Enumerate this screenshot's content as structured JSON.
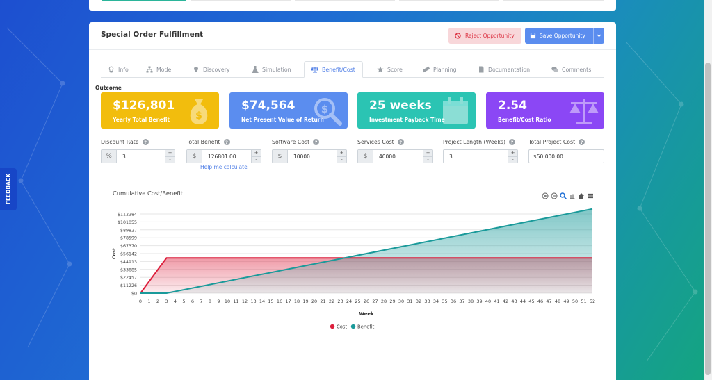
{
  "page": {
    "title": "Special Order Fulfillment",
    "reject_label": "Reject Opportunity",
    "save_label": "Save Opportunity",
    "feedback_label": "FEEDBACK"
  },
  "tabs": [
    {
      "label": "Info",
      "icon": "lightbulb-icon"
    },
    {
      "label": "Model",
      "icon": "sitemap-icon"
    },
    {
      "label": "Discovery",
      "icon": "bulb-icon"
    },
    {
      "label": "Simulation",
      "icon": "flask-icon"
    },
    {
      "label": "Benefit/Cost",
      "icon": "balance-scale-icon",
      "active": true
    },
    {
      "label": "Score",
      "icon": "star-icon"
    },
    {
      "label": "Planning",
      "icon": "ruler-icon"
    },
    {
      "label": "Documentation",
      "icon": "file-icon"
    },
    {
      "label": "Comments",
      "icon": "comments-icon"
    }
  ],
  "outcome": {
    "label": "Outcome",
    "kpis": [
      {
        "value": "$126,801",
        "label": "Yearly Total Benefit",
        "color": "#f2bd0d",
        "icon": "money-bag-icon"
      },
      {
        "value": "$74,564",
        "label": "Net Present Value of Return",
        "color": "#5b8def",
        "icon": "search-dollar-icon"
      },
      {
        "value": "25 weeks",
        "label": "Investment Payback Time",
        "color": "#2bc4b3",
        "icon": "calendar-icon"
      },
      {
        "value": "2.54",
        "label": "Benefit/Cost Ratio",
        "color": "#8b47f5",
        "icon": "balance-scale-icon"
      }
    ]
  },
  "fields": [
    {
      "label": "Discount Rate",
      "prefix": "%",
      "value": "3",
      "spinner": true
    },
    {
      "label": "Total Benefit",
      "prefix": "$",
      "value": "126801.00",
      "spinner": true
    },
    {
      "label": "Software Cost",
      "prefix": "$",
      "value": "10000",
      "spinner": true
    },
    {
      "label": "Services Cost",
      "prefix": "$",
      "value": "40000",
      "spinner": true
    },
    {
      "label": "Project Length (Weeks)",
      "prefix": "",
      "value": "3",
      "spinner": true
    },
    {
      "label": "Total Project Cost",
      "prefix": "",
      "value": "$50,000.00",
      "spinner": false
    }
  ],
  "help_link": "Help me calculate",
  "chart_title": "Cumulative Cost/Benefit",
  "colors": {
    "cost": "#dc1f3c",
    "benefit": "#1a9a9a"
  },
  "chart_data": {
    "type": "area",
    "title": "Cumulative Cost/Benefit",
    "xlabel": "Week",
    "ylabel": "Cost",
    "x": [
      0,
      1,
      2,
      3,
      4,
      5,
      6,
      7,
      8,
      9,
      10,
      11,
      12,
      13,
      14,
      15,
      16,
      17,
      18,
      19,
      20,
      21,
      22,
      23,
      24,
      25,
      26,
      27,
      28,
      29,
      30,
      31,
      32,
      33,
      34,
      35,
      36,
      37,
      38,
      39,
      40,
      41,
      42,
      43,
      44,
      45,
      46,
      47,
      48,
      49,
      50,
      51,
      52
    ],
    "y_ticks": [
      "$0",
      "$11226",
      "$22457",
      "$33685",
      "$44913",
      "$56142",
      "$67370",
      "$78599",
      "$89827",
      "$101055",
      "$112284"
    ],
    "ylim": [
      0,
      112284
    ],
    "series": [
      {
        "name": "Cost",
        "segments": [
          [
            0,
            0
          ],
          [
            3,
            50000
          ],
          [
            52,
            50000
          ]
        ]
      },
      {
        "name": "Benefit",
        "segments": [
          [
            0,
            0
          ],
          [
            3,
            0
          ],
          [
            52,
            119487
          ]
        ]
      }
    ],
    "legend": "bottom-center",
    "grid": true
  }
}
